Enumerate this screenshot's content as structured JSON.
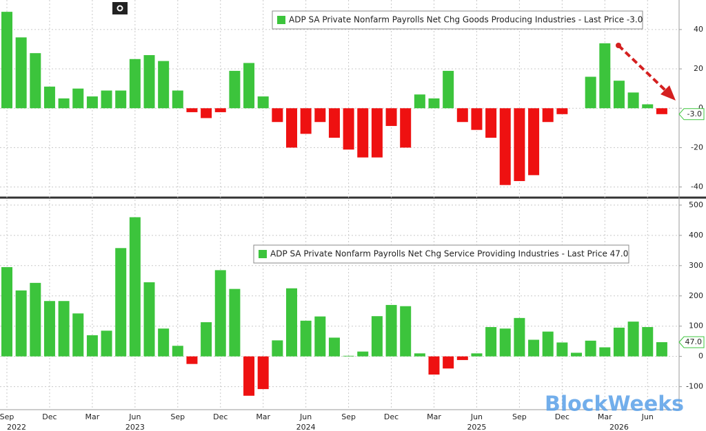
{
  "chart_data": [
    {
      "type": "bar",
      "legend": "ADP SA Private Nonfarm Payrolls Net Chg Goods Producing Industries - Last Price -3.0",
      "values": [
        49,
        36,
        28,
        11,
        5,
        10,
        6,
        9,
        9,
        25,
        27,
        24,
        9,
        -2,
        -5,
        -2,
        19,
        23,
        6,
        -7,
        -20,
        -13,
        -7,
        -15,
        -21,
        -25,
        -25,
        -9,
        -20,
        7,
        5,
        19,
        -7,
        -11,
        -15,
        -39,
        -37,
        -34,
        -7,
        -3,
        0,
        16,
        33,
        14,
        8,
        2,
        -3
      ],
      "last_price": {
        "value": -3,
        "label": "-3.0"
      },
      "color_positive": "#3cc43c",
      "color_negative": "#ee1111",
      "ylim": [
        -44,
        55
      ],
      "yticks": [
        -40,
        -20,
        0,
        20,
        40
      ],
      "grid": true
    },
    {
      "type": "bar",
      "legend": "ADP SA Private Nonfarm Payrolls Net Chg Service Providing Industries - Last Price 47.0",
      "categories": [
        "Sep",
        null,
        null,
        "Dec",
        null,
        null,
        "Mar",
        null,
        null,
        "Jun",
        null,
        null,
        "Sep",
        null,
        null,
        "Dec",
        null,
        null,
        "Mar",
        null,
        null,
        "Jun",
        null,
        null,
        "Sep",
        null,
        null,
        "Dec",
        null,
        null,
        "Mar",
        null,
        null,
        "Jun",
        null,
        null,
        "Sep",
        null,
        null,
        "Dec",
        null,
        null,
        "Mar",
        null,
        null,
        "Jun",
        null
      ],
      "years": [
        "2022",
        null,
        null,
        null,
        null,
        null,
        null,
        null,
        null,
        "2023",
        null,
        null,
        null,
        null,
        null,
        null,
        null,
        null,
        null,
        null,
        null,
        "2024",
        null,
        null,
        null,
        null,
        null,
        null,
        null,
        null,
        null,
        null,
        null,
        "2025",
        null,
        null,
        null,
        null,
        null,
        null,
        null,
        null,
        null,
        "2026",
        null,
        null,
        null
      ],
      "values": [
        295,
        218,
        243,
        183,
        183,
        142,
        70,
        85,
        358,
        460,
        245,
        92,
        35,
        -25,
        113,
        285,
        223,
        -130,
        -108,
        53,
        225,
        118,
        132,
        62,
        2,
        16,
        133,
        170,
        166,
        10,
        -60,
        -40,
        -12,
        10,
        97,
        92,
        127,
        55,
        82,
        46,
        12,
        52,
        30,
        95,
        115,
        97,
        47
      ],
      "last_price": {
        "value": 47,
        "label": "47.0"
      },
      "color_positive": "#3cc43c",
      "color_negative": "#ee1111",
      "ylim": [
        -176,
        518
      ],
      "yticks": [
        -100,
        0,
        100,
        200,
        300,
        400,
        500
      ],
      "grid": true
    }
  ],
  "watermark": "BlockWeeks"
}
